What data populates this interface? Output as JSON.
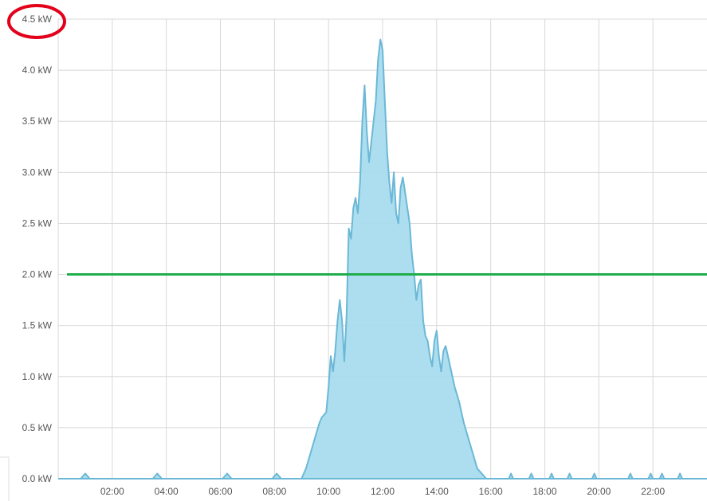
{
  "chart_data": {
    "type": "area",
    "title": "",
    "xlabel": "",
    "ylabel": "",
    "y_unit": "kW",
    "ylim": [
      0,
      4.5
    ],
    "xlim": [
      "00:00",
      "24:00"
    ],
    "y_ticks": [
      {
        "value": 0.0,
        "label": "0.0 kW"
      },
      {
        "value": 0.5,
        "label": "0.5 kW"
      },
      {
        "value": 1.0,
        "label": "1.0 kW"
      },
      {
        "value": 1.5,
        "label": "1.5 kW"
      },
      {
        "value": 2.0,
        "label": "2.0 kW"
      },
      {
        "value": 2.5,
        "label": "2.5 kW"
      },
      {
        "value": 3.0,
        "label": "3.0 kW"
      },
      {
        "value": 3.5,
        "label": "3.5 kW"
      },
      {
        "value": 4.0,
        "label": "4.0 kW"
      },
      {
        "value": 4.5,
        "label": "4.5 kW"
      }
    ],
    "x_ticks": [
      "02:00",
      "04:00",
      "06:00",
      "08:00",
      "10:00",
      "12:00",
      "14:00",
      "16:00",
      "18:00",
      "20:00",
      "22:00"
    ],
    "grid": true,
    "legend": "none",
    "series": [
      {
        "color": "#a8dcef",
        "line_color": "#6bb8d6",
        "points": [
          [
            "00:00",
            0
          ],
          [
            "00:50",
            0
          ],
          [
            "01:00",
            0.05
          ],
          [
            "01:10",
            0
          ],
          [
            "03:30",
            0
          ],
          [
            "03:40",
            0.05
          ],
          [
            "03:50",
            0
          ],
          [
            "06:05",
            0
          ],
          [
            "06:15",
            0.05
          ],
          [
            "06:25",
            0
          ],
          [
            "07:55",
            0
          ],
          [
            "08:05",
            0.05
          ],
          [
            "08:15",
            0
          ],
          [
            "09:00",
            0
          ],
          [
            "09:10",
            0.1
          ],
          [
            "09:20",
            0.25
          ],
          [
            "09:30",
            0.4
          ],
          [
            "09:40",
            0.55
          ],
          [
            "09:45",
            0.6
          ],
          [
            "09:55",
            0.65
          ],
          [
            "10:00",
            0.9
          ],
          [
            "10:05",
            1.2
          ],
          [
            "10:10",
            1.05
          ],
          [
            "10:15",
            1.25
          ],
          [
            "10:20",
            1.55
          ],
          [
            "10:25",
            1.75
          ],
          [
            "10:30",
            1.55
          ],
          [
            "10:35",
            1.15
          ],
          [
            "10:40",
            1.6
          ],
          [
            "10:45",
            2.45
          ],
          [
            "10:50",
            2.35
          ],
          [
            "10:55",
            2.65
          ],
          [
            "11:00",
            2.75
          ],
          [
            "11:05",
            2.6
          ],
          [
            "11:10",
            2.9
          ],
          [
            "11:15",
            3.5
          ],
          [
            "11:20",
            3.85
          ],
          [
            "11:25",
            3.4
          ],
          [
            "11:30",
            3.1
          ],
          [
            "11:35",
            3.3
          ],
          [
            "11:40",
            3.5
          ],
          [
            "11:45",
            3.7
          ],
          [
            "11:50",
            4.1
          ],
          [
            "11:55",
            4.3
          ],
          [
            "12:00",
            4.2
          ],
          [
            "12:05",
            3.7
          ],
          [
            "12:10",
            3.2
          ],
          [
            "12:15",
            2.9
          ],
          [
            "12:20",
            2.7
          ],
          [
            "12:25",
            3.0
          ],
          [
            "12:30",
            2.6
          ],
          [
            "12:35",
            2.5
          ],
          [
            "12:40",
            2.85
          ],
          [
            "12:45",
            2.95
          ],
          [
            "12:50",
            2.8
          ],
          [
            "12:55",
            2.65
          ],
          [
            "13:00",
            2.5
          ],
          [
            "13:05",
            2.2
          ],
          [
            "13:10",
            2.0
          ],
          [
            "13:15",
            1.75
          ],
          [
            "13:20",
            1.9
          ],
          [
            "13:25",
            1.95
          ],
          [
            "13:30",
            1.55
          ],
          [
            "13:35",
            1.4
          ],
          [
            "13:40",
            1.35
          ],
          [
            "13:45",
            1.2
          ],
          [
            "13:50",
            1.1
          ],
          [
            "13:55",
            1.35
          ],
          [
            "14:00",
            1.45
          ],
          [
            "14:05",
            1.2
          ],
          [
            "14:10",
            1.05
          ],
          [
            "14:15",
            1.25
          ],
          [
            "14:20",
            1.3
          ],
          [
            "14:25",
            1.2
          ],
          [
            "14:30",
            1.1
          ],
          [
            "14:40",
            0.9
          ],
          [
            "14:50",
            0.75
          ],
          [
            "15:00",
            0.55
          ],
          [
            "15:10",
            0.4
          ],
          [
            "15:20",
            0.25
          ],
          [
            "15:30",
            0.1
          ],
          [
            "15:40",
            0.05
          ],
          [
            "15:50",
            0
          ],
          [
            "16:40",
            0
          ],
          [
            "16:45",
            0.05
          ],
          [
            "16:50",
            0
          ],
          [
            "17:25",
            0
          ],
          [
            "17:30",
            0.05
          ],
          [
            "17:35",
            0
          ],
          [
            "18:10",
            0
          ],
          [
            "18:15",
            0.05
          ],
          [
            "18:20",
            0
          ],
          [
            "18:50",
            0
          ],
          [
            "18:55",
            0.05
          ],
          [
            "19:00",
            0
          ],
          [
            "19:45",
            0
          ],
          [
            "19:50",
            0.05
          ],
          [
            "19:55",
            0
          ],
          [
            "21:05",
            0
          ],
          [
            "21:10",
            0.05
          ],
          [
            "21:15",
            0
          ],
          [
            "21:50",
            0
          ],
          [
            "21:55",
            0.05
          ],
          [
            "22:00",
            0
          ],
          [
            "22:15",
            0
          ],
          [
            "22:20",
            0.05
          ],
          [
            "22:25",
            0
          ],
          [
            "22:55",
            0
          ],
          [
            "23:00",
            0.05
          ],
          [
            "23:05",
            0
          ],
          [
            "24:00",
            0
          ]
        ]
      }
    ],
    "reference_line": {
      "value": 2.0,
      "color": "#1fae4b"
    },
    "annotation": {
      "shape": "ellipse",
      "target": "4.5 kW",
      "color": "#e3001b"
    }
  }
}
